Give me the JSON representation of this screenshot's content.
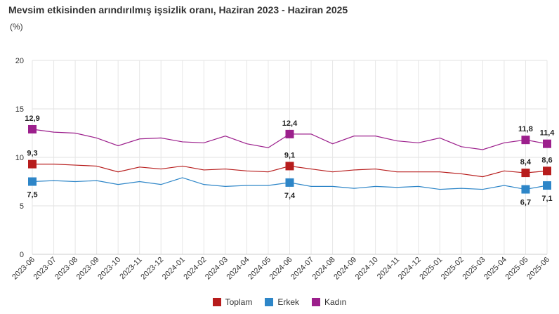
{
  "chart_data": {
    "type": "line",
    "title": "Mevsim etkisinden arındırılmış işsizlik oranı, Haziran 2023 - Haziran 2025",
    "ylabel": "(%)",
    "ylim": [
      0,
      20
    ],
    "yticks": [
      "0",
      "5",
      "10",
      "15",
      "20"
    ],
    "grid": true,
    "legend_placement": "bottom",
    "x": [
      "2023-06",
      "2023-07",
      "2023-08",
      "2023-09",
      "2023-10",
      "2023-11",
      "2023-12",
      "2024-01",
      "2024-02",
      "2024-03",
      "2024-04",
      "2024-05",
      "2024-06",
      "2024-07",
      "2024-08",
      "2024-09",
      "2024-10",
      "2024-11",
      "2024-12",
      "2025-01",
      "2025-02",
      "2025-03",
      "2025-04",
      "2025-05",
      "2025-06"
    ],
    "series": [
      {
        "name": "Toplam",
        "color": "#b71c1c",
        "values": [
          9.3,
          9.3,
          9.2,
          9.1,
          8.5,
          9.0,
          8.8,
          9.1,
          8.7,
          8.8,
          8.6,
          8.5,
          9.1,
          8.8,
          8.5,
          8.7,
          8.8,
          8.5,
          8.5,
          8.5,
          8.3,
          8.0,
          8.6,
          8.4,
          8.6
        ],
        "labels": {
          "0": "9,3",
          "12": "9,1",
          "23": "8,4",
          "24": "8,6"
        }
      },
      {
        "name": "Erkek",
        "color": "#2e86c8",
        "values": [
          7.5,
          7.6,
          7.5,
          7.6,
          7.2,
          7.5,
          7.2,
          7.9,
          7.2,
          7.0,
          7.1,
          7.1,
          7.4,
          7.0,
          7.0,
          6.8,
          7.0,
          6.9,
          7.0,
          6.7,
          6.8,
          6.7,
          7.1,
          6.7,
          7.1
        ],
        "labels": {
          "0": "7,5",
          "12": "7,4",
          "23": "6,7",
          "24": "7,1"
        }
      },
      {
        "name": "Kadın",
        "color": "#9c1f8c",
        "values": [
          12.9,
          12.6,
          12.5,
          12.0,
          11.2,
          11.9,
          12.0,
          11.6,
          11.5,
          12.2,
          11.4,
          11.0,
          12.4,
          12.4,
          11.4,
          12.2,
          12.2,
          11.7,
          11.5,
          12.0,
          11.1,
          10.8,
          11.5,
          11.8,
          11.4
        ],
        "labels": {
          "0": "12,9",
          "12": "12,4",
          "23": "11,8",
          "24": "11,4"
        }
      }
    ]
  }
}
